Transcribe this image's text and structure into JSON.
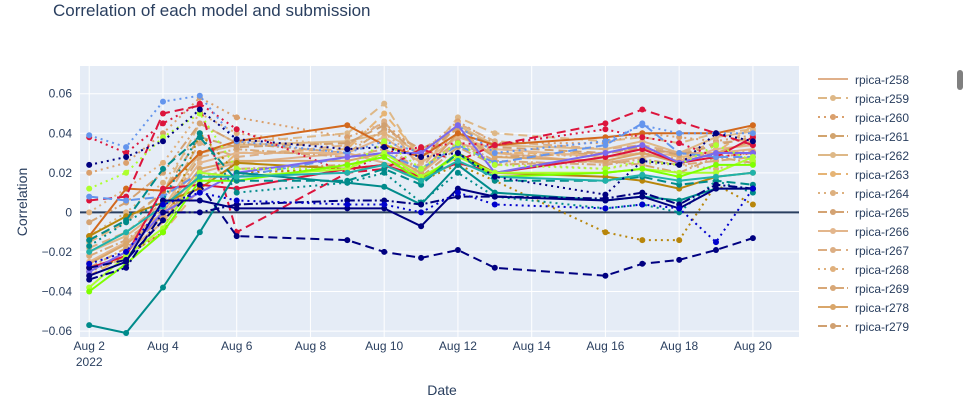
{
  "title": "Correlation of each model and submission",
  "chart_data": {
    "type": "line",
    "title": "Correlation of each model and submission",
    "xlabel": "Date",
    "ylabel": "Correlation",
    "x": [
      "2022-08-02",
      "2022-08-03",
      "2022-08-04",
      "2022-08-05",
      "2022-08-06",
      "2022-08-09",
      "2022-08-10",
      "2022-08-11",
      "2022-08-12",
      "2022-08-13",
      "2022-08-16",
      "2022-08-17",
      "2022-08-18",
      "2022-08-19",
      "2022-08-20"
    ],
    "xlim": [
      "2022-08-01 18:00",
      "2022-08-21 06:00"
    ],
    "ylim": [
      -0.063,
      0.074
    ],
    "x_ticks": [
      {
        "date": "2022-08-02",
        "label": "Aug 2",
        "sub": "2022"
      },
      {
        "date": "2022-08-04",
        "label": "Aug 4",
        "sub": ""
      },
      {
        "date": "2022-08-06",
        "label": "Aug 6",
        "sub": ""
      },
      {
        "date": "2022-08-08",
        "label": "Aug 8",
        "sub": ""
      },
      {
        "date": "2022-08-10",
        "label": "Aug 10",
        "sub": ""
      },
      {
        "date": "2022-08-12",
        "label": "Aug 12",
        "sub": ""
      },
      {
        "date": "2022-08-14",
        "label": "Aug 14",
        "sub": ""
      },
      {
        "date": "2022-08-16",
        "label": "Aug 16",
        "sub": ""
      },
      {
        "date": "2022-08-18",
        "label": "Aug 18",
        "sub": ""
      },
      {
        "date": "2022-08-20",
        "label": "Aug 20",
        "sub": ""
      }
    ],
    "y_ticks": [
      {
        "value": -0.06,
        "label": "−0.06"
      },
      {
        "value": -0.04,
        "label": "−0.04"
      },
      {
        "value": -0.02,
        "label": "−0.02"
      },
      {
        "value": 0,
        "label": "0"
      },
      {
        "value": 0.02,
        "label": "0.02"
      },
      {
        "value": 0.04,
        "label": "0.04"
      },
      {
        "value": 0.06,
        "label": "0.06"
      }
    ],
    "grid": true,
    "legend_position": "right",
    "series": [
      {
        "name": "rpica-r258",
        "color": "#e0b08a",
        "dash": "solid",
        "markers": false,
        "values": [
          -0.03,
          -0.02,
          -0.005,
          0.02,
          0.025,
          0.03,
          0.025,
          0.02,
          0.035,
          0.03,
          0.025,
          0.028,
          0.03,
          0.03,
          0.032
        ]
      },
      {
        "name": "rpica-r259",
        "color": "#deb887",
        "dash": "dash",
        "markers": true,
        "values": [
          -0.015,
          -0.005,
          0.01,
          0.045,
          0.035,
          0.04,
          0.055,
          0.025,
          0.048,
          0.04,
          0.036,
          0.038,
          0.035,
          0.04,
          0.042
        ]
      },
      {
        "name": "rpica-r260",
        "color": "#daa06d",
        "dash": "dot",
        "markers": true,
        "values": [
          0.02,
          0.025,
          0.04,
          0.058,
          0.048,
          0.038,
          0.045,
          0.03,
          0.046,
          0.035,
          0.035,
          0.04,
          0.038,
          0.036,
          0.039
        ]
      },
      {
        "name": "rpica-r261",
        "color": "#d2a46e",
        "dash": "dashdot",
        "markers": true,
        "values": [
          -0.028,
          -0.018,
          -0.003,
          0.018,
          0.022,
          0.024,
          0.028,
          0.018,
          0.033,
          0.024,
          0.026,
          0.024,
          0.02,
          0.028,
          0.025
        ]
      },
      {
        "name": "rpica-r262",
        "color": "#deb887",
        "dash": "solid",
        "markers": true,
        "values": [
          -0.02,
          -0.012,
          0.002,
          0.03,
          0.034,
          0.036,
          0.04,
          0.03,
          0.044,
          0.034,
          0.032,
          0.036,
          0.03,
          0.038,
          0.041
        ]
      },
      {
        "name": "rpica-r263",
        "color": "#e6b475",
        "dash": "dash",
        "markers": true,
        "values": [
          -0.032,
          -0.022,
          -0.01,
          0.012,
          0.03,
          0.032,
          0.05,
          0.028,
          0.04,
          0.03,
          0.03,
          0.032,
          0.028,
          0.03,
          0.044
        ]
      },
      {
        "name": "rpica-r264",
        "color": "#ddb07f",
        "dash": "dot",
        "markers": true,
        "values": [
          -0.012,
          0.0,
          0.015,
          0.04,
          0.02,
          0.022,
          0.035,
          0.02,
          0.035,
          0.025,
          0.022,
          0.025,
          0.024,
          0.022,
          0.026
        ]
      },
      {
        "name": "rpica-r265",
        "color": "#d4a373",
        "dash": "dashdot",
        "markers": true,
        "values": [
          -0.005,
          0.005,
          0.02,
          0.045,
          0.035,
          0.03,
          0.042,
          0.032,
          0.042,
          0.028,
          0.03,
          0.032,
          0.03,
          0.028,
          0.03
        ]
      },
      {
        "name": "rpica-r266",
        "color": "#e3b68c",
        "dash": "solid",
        "markers": true,
        "values": [
          -0.025,
          -0.015,
          0.0,
          0.025,
          0.03,
          0.03,
          0.038,
          0.025,
          0.038,
          0.032,
          0.028,
          0.03,
          0.026,
          0.032,
          0.034
        ]
      },
      {
        "name": "rpica-r267",
        "color": "#dcae83",
        "dash": "dash",
        "markers": true,
        "values": [
          -0.018,
          -0.01,
          0.005,
          0.035,
          0.028,
          0.034,
          0.046,
          0.022,
          0.045,
          0.036,
          0.032,
          0.034,
          0.03,
          0.035,
          0.037
        ]
      },
      {
        "name": "rpica-r268",
        "color": "#e0b07c",
        "dash": "dot",
        "markers": true,
        "values": [
          0.0,
          0.012,
          0.025,
          0.05,
          0.04,
          0.033,
          0.04,
          0.026,
          0.04,
          0.03,
          0.028,
          0.03,
          0.027,
          0.03,
          0.031
        ]
      },
      {
        "name": "rpica-r269",
        "color": "#d8a878",
        "dash": "dashdot",
        "markers": true,
        "values": [
          -0.022,
          -0.014,
          0.0,
          0.028,
          0.032,
          0.028,
          0.032,
          0.022,
          0.036,
          0.026,
          0.024,
          0.027,
          0.024,
          0.026,
          0.028
        ]
      },
      {
        "name": "rpica-r278",
        "color": "#d9a66a",
        "dash": "solid",
        "markers": true,
        "values": [
          -0.026,
          -0.016,
          -0.002,
          0.022,
          0.026,
          0.026,
          0.03,
          0.02,
          0.04,
          0.028,
          0.026,
          0.03,
          0.025,
          0.03,
          0.036
        ]
      },
      {
        "name": "rpica-r279",
        "color": "#d0a070",
        "dash": "dash",
        "markers": true,
        "values": [
          -0.014,
          -0.004,
          0.01,
          0.038,
          0.033,
          0.035,
          0.044,
          0.028,
          0.043,
          0.033,
          0.03,
          0.033,
          0.029,
          0.034,
          0.038
        ]
      },
      {
        "name": "",
        "color": "#d2691e",
        "dash": "solid",
        "markers": true,
        "values": [
          -0.012,
          0.012,
          0.011,
          0.03,
          0.036,
          0.044,
          0.034,
          0.028,
          0.04,
          0.034,
          0.038,
          0.04,
          0.04,
          0.04,
          0.044
        ]
      },
      {
        "name": "",
        "color": "#b8860b",
        "dash": "solid",
        "markers": true,
        "values": [
          -0.012,
          -0.002,
          0.005,
          0.012,
          0.025,
          0.022,
          0.024,
          0.016,
          0.03,
          0.02,
          0.018,
          0.016,
          0.012,
          0.018,
          0.02
        ]
      },
      {
        "name": "",
        "color": "#b8860b",
        "dash": "dot",
        "markers": true,
        "values": [
          -0.03,
          -0.022,
          -0.01,
          0.04,
          0.02,
          0.022,
          0.024,
          0.016,
          0.024,
          0.016,
          -0.01,
          -0.014,
          -0.014,
          0.014,
          0.004
        ]
      },
      {
        "name": "",
        "color": "#dc143c",
        "dash": "solid",
        "markers": true,
        "values": [
          -0.028,
          -0.022,
          0.012,
          0.014,
          0.012,
          0.022,
          0.024,
          0.018,
          0.025,
          0.02,
          0.028,
          0.032,
          0.025,
          0.028,
          0.038
        ]
      },
      {
        "name": "",
        "color": "#dc143c",
        "dash": "dash",
        "markers": true,
        "values": [
          0.006,
          0.008,
          0.05,
          0.054,
          -0.01,
          0.02,
          0.022,
          0.032,
          0.026,
          0.034,
          0.045,
          0.052,
          0.046,
          0.04,
          0.034
        ]
      },
      {
        "name": "",
        "color": "#dc143c",
        "dash": "dot",
        "markers": true,
        "values": [
          0.038,
          0.03,
          0.045,
          0.055,
          0.042,
          0.02,
          0.03,
          0.033,
          0.035,
          0.034,
          0.042,
          0.038,
          0.035,
          0.028,
          0.03
        ]
      },
      {
        "name": "",
        "color": "#6495ed",
        "dash": "dot",
        "markers": true,
        "values": [
          0.039,
          0.033,
          0.056,
          0.059,
          0.036,
          0.03,
          0.036,
          0.03,
          0.044,
          0.03,
          0.036,
          0.044,
          0.04,
          0.04,
          0.04
        ]
      },
      {
        "name": "",
        "color": "#6495ed",
        "dash": "dash",
        "markers": true,
        "values": [
          0.008,
          0.006,
          0.008,
          0.02,
          0.018,
          0.028,
          0.03,
          0.022,
          0.034,
          0.025,
          0.034,
          0.045,
          0.03,
          0.028,
          0.028
        ]
      },
      {
        "name": "",
        "color": "#7b68ee",
        "dash": "solid",
        "markers": true,
        "values": [
          -0.03,
          -0.02,
          0.0,
          0.01,
          0.02,
          0.028,
          0.03,
          0.03,
          0.044,
          0.02,
          0.03,
          0.034,
          0.025,
          0.03,
          0.03
        ]
      },
      {
        "name": "",
        "color": "#adff2f",
        "dash": "solid",
        "markers": true,
        "values": [
          -0.038,
          -0.022,
          -0.008,
          0.02,
          0.018,
          0.022,
          0.03,
          0.018,
          0.028,
          0.02,
          0.02,
          0.022,
          0.02,
          0.02,
          0.028
        ]
      },
      {
        "name": "",
        "color": "#adff2f",
        "dash": "dot",
        "markers": true,
        "values": [
          0.012,
          0.02,
          0.038,
          0.05,
          0.022,
          0.022,
          0.036,
          0.022,
          0.035,
          0.024,
          0.022,
          0.026,
          0.024,
          0.034,
          0.026
        ]
      },
      {
        "name": "",
        "color": "#7fff00",
        "dash": "solid",
        "markers": true,
        "values": [
          -0.04,
          -0.026,
          -0.01,
          0.016,
          0.016,
          0.024,
          0.028,
          0.016,
          0.03,
          0.018,
          0.02,
          0.022,
          0.018,
          0.024,
          0.024
        ]
      },
      {
        "name": "",
        "color": "#008b8b",
        "dash": "solid",
        "markers": true,
        "values": [
          -0.057,
          -0.061,
          -0.038,
          -0.01,
          0.02,
          0.015,
          0.013,
          0.004,
          0.024,
          0.01,
          0.006,
          0.008,
          0.006,
          0.012,
          0.012
        ]
      },
      {
        "name": "",
        "color": "#008b8b",
        "dash": "dash",
        "markers": true,
        "values": [
          -0.014,
          -0.004,
          0.022,
          0.038,
          0.016,
          0.016,
          0.022,
          0.014,
          0.03,
          0.016,
          0.016,
          0.018,
          0.014,
          0.016,
          0.014
        ]
      },
      {
        "name": "",
        "color": "#008b8b",
        "dash": "dot",
        "markers": true,
        "values": [
          -0.017,
          -0.005,
          0.006,
          0.04,
          0.01,
          0.015,
          0.02,
          0.005,
          0.02,
          0.008,
          0.002,
          0.004,
          0.0,
          0.016,
          0.01
        ]
      },
      {
        "name": "",
        "color": "#20b2aa",
        "dash": "solid",
        "markers": true,
        "values": [
          -0.02,
          -0.01,
          0.003,
          0.018,
          0.018,
          0.02,
          0.024,
          0.016,
          0.026,
          0.018,
          0.016,
          0.019,
          0.016,
          0.018,
          0.02
        ]
      },
      {
        "name": "",
        "color": "#000080",
        "dash": "solid",
        "markers": true,
        "values": [
          -0.032,
          -0.025,
          0.006,
          0.006,
          0.002,
          0.002,
          0.002,
          -0.007,
          0.012,
          0.008,
          0.006,
          0.008,
          0.002,
          0.012,
          0.012
        ]
      },
      {
        "name": "",
        "color": "#000080",
        "dash": "dash",
        "markers": true,
        "values": [
          -0.028,
          -0.024,
          -0.004,
          0.014,
          -0.012,
          -0.014,
          -0.02,
          -0.023,
          -0.019,
          -0.028,
          -0.032,
          -0.026,
          -0.024,
          -0.019,
          -0.013
        ]
      },
      {
        "name": "",
        "color": "#000080",
        "dash": "dot",
        "markers": true,
        "values": [
          0.024,
          0.028,
          0.036,
          0.052,
          0.037,
          0.032,
          0.033,
          0.028,
          0.03,
          0.018,
          0.009,
          0.026,
          0.024,
          0.04,
          0.036
        ]
      },
      {
        "name": "",
        "color": "#000080",
        "dash": "dashdot",
        "markers": true,
        "values": [
          -0.034,
          -0.028,
          0.0,
          0.0,
          0.004,
          0.006,
          0.006,
          0.004,
          0.008,
          0.008,
          0.007,
          0.01,
          0.004,
          0.014,
          0.012
        ]
      },
      {
        "name": "",
        "color": "#0000cd",
        "dash": "dot",
        "markers": true,
        "values": [
          -0.026,
          -0.02,
          0.004,
          0.01,
          0.006,
          0.004,
          0.004,
          0.0,
          0.01,
          0.004,
          0.002,
          0.004,
          0.002,
          -0.015,
          0.012
        ]
      }
    ]
  },
  "legend": {
    "items": [
      "rpica-r258",
      "rpica-r259",
      "rpica-r260",
      "rpica-r261",
      "rpica-r262",
      "rpica-r263",
      "rpica-r264",
      "rpica-r265",
      "rpica-r266",
      "rpica-r267",
      "rpica-r268",
      "rpica-r269",
      "rpica-r278",
      "rpica-r279"
    ]
  }
}
